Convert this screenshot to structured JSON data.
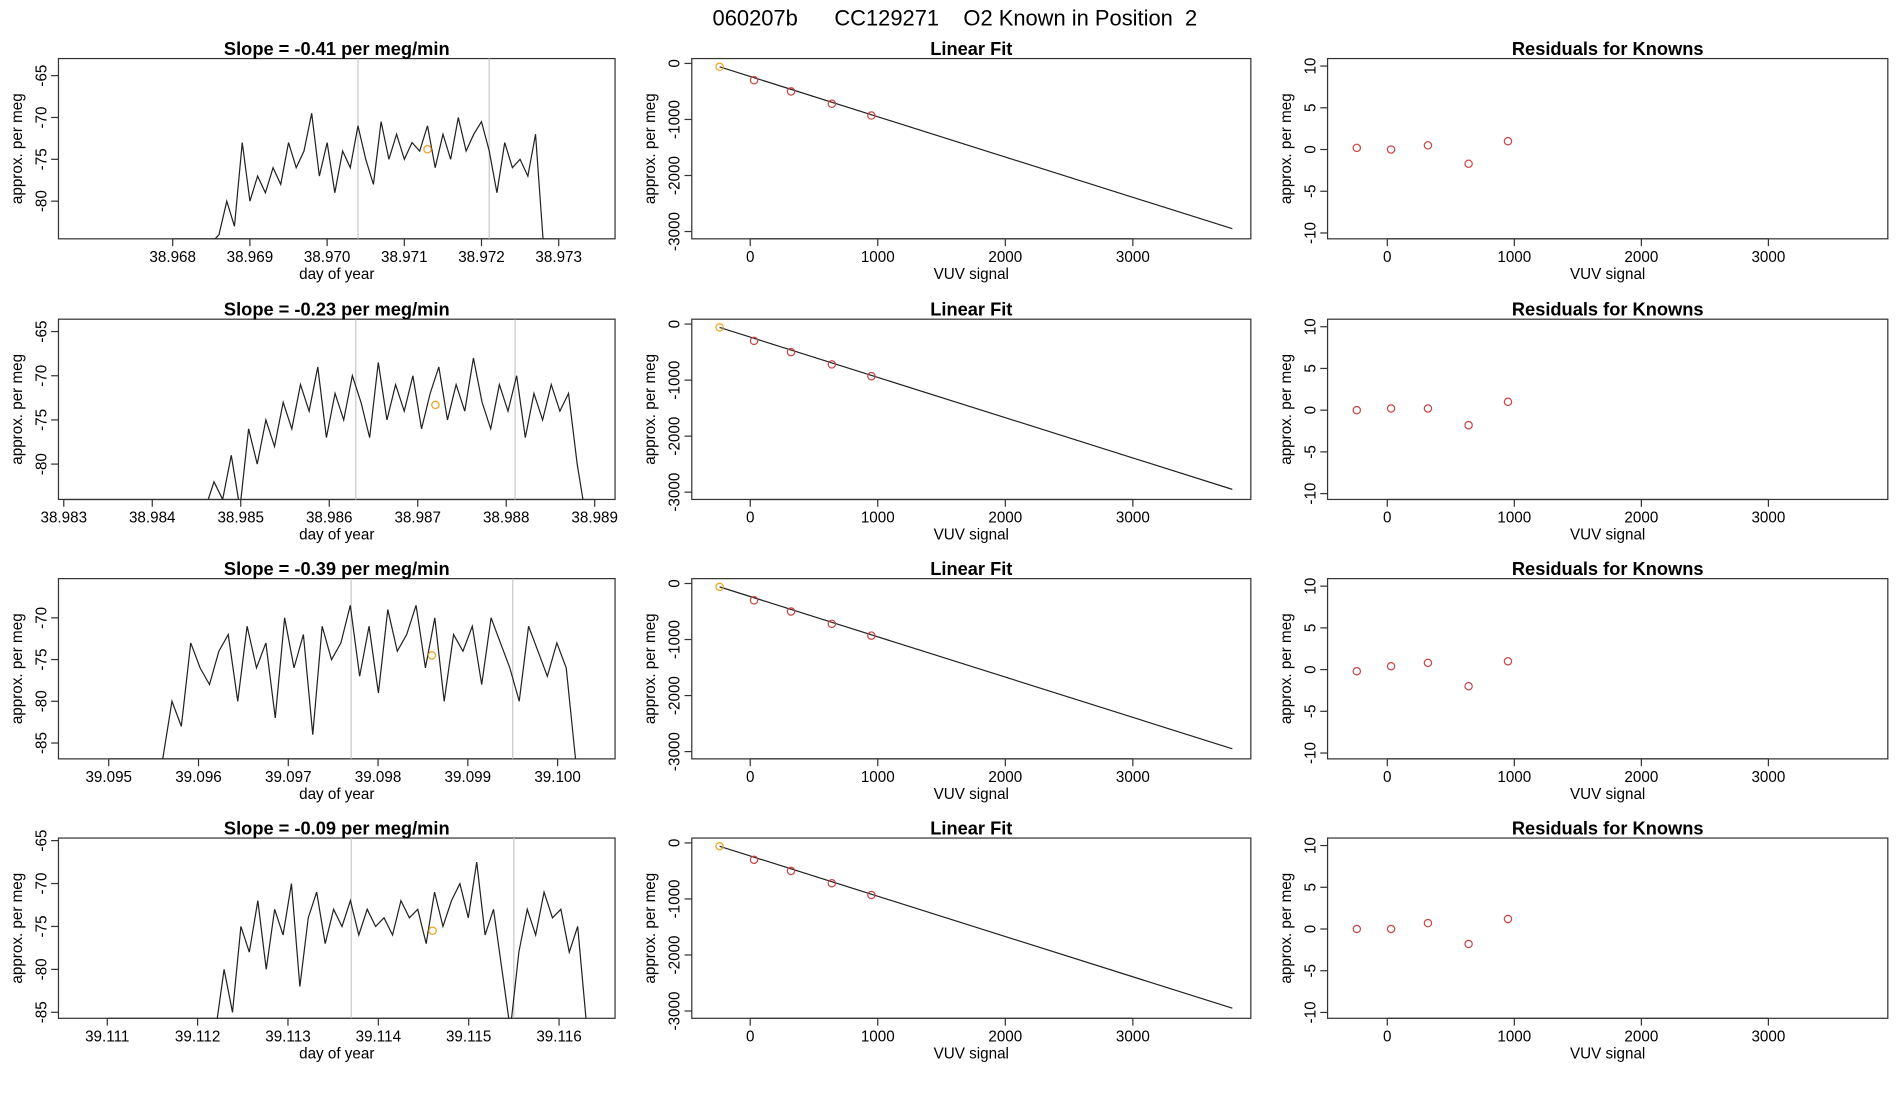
{
  "title": "060207b      CC129271    O2 Known in Position  2",
  "colors": {
    "line": "#222222",
    "marker_known": "#cc4444",
    "marker_first": "#f0a020",
    "guide": "#c8c8c8"
  },
  "chart_data": [
    {
      "type": "line",
      "row": 0,
      "title": "Slope =  -0.41  per meg/min",
      "xlabel": "day of year",
      "ylabel": "approx. per meg",
      "xlim": [
        38.96652,
        38.97373
      ],
      "ylim": [
        -84.5,
        -62.96
      ],
      "xticks": [
        "38.968",
        "38.969",
        "38.970",
        "38.971",
        "38.972",
        "38.973"
      ],
      "yticks": [
        "-65",
        "-70",
        "-75",
        "-80"
      ],
      "x_start": 38.9683,
      "x_end": 38.9728,
      "y": [
        -85,
        -85,
        -85,
        -84,
        -80,
        -83,
        -73,
        -80,
        -77,
        -79,
        -76,
        -78,
        -73,
        -76,
        -74,
        -69.5,
        -77,
        -73,
        -79,
        -74,
        -76,
        -71,
        -75,
        -78,
        -70.5,
        -75,
        -72,
        -75,
        -73,
        -74,
        -71,
        -76,
        -72,
        -75,
        -70,
        -74,
        -72,
        -70.5,
        -74,
        -79,
        -73,
        -76,
        -75,
        -77,
        -72,
        -85
      ],
      "guides": [
        38.9704,
        38.9721
      ],
      "marker": {
        "x": 38.9713,
        "y": -73.8
      }
    },
    {
      "type": "line",
      "row": 1,
      "title": "Slope =  -0.23  per meg/min",
      "xlabel": "day of year",
      "ylabel": "approx. per meg",
      "xlim": [
        38.98294,
        38.98923
      ],
      "ylim": [
        -84.0,
        -63.6
      ],
      "xticks": [
        "38.983",
        "38.984",
        "38.985",
        "38.986",
        "38.987",
        "38.988",
        "38.989"
      ],
      "yticks": [
        "-65",
        "-70",
        "-75",
        "-80"
      ],
      "x_start": 38.9846,
      "x_end": 38.9889,
      "y": [
        -85,
        -82,
        -84,
        -79,
        -85,
        -76,
        -80,
        -75,
        -78,
        -73,
        -76,
        -71,
        -74,
        -69,
        -77,
        -72,
        -75,
        -70,
        -73,
        -77,
        -68.5,
        -75,
        -71,
        -74,
        -70,
        -76,
        -72,
        -69,
        -75,
        -71,
        -74,
        -68,
        -73,
        -76,
        -71,
        -74,
        -70,
        -77,
        -72,
        -75,
        -71,
        -74,
        -72,
        -80,
        -86
      ],
      "guides": [
        38.9863,
        38.9881
      ],
      "marker": {
        "x": 38.9872,
        "y": -73.3
      }
    },
    {
      "type": "line",
      "row": 2,
      "title": "Slope =  -0.39  per meg/min",
      "xlabel": "day of year",
      "ylabel": "approx. per meg",
      "xlim": [
        39.09444,
        39.10064
      ],
      "ylim": [
        -86.9,
        -65.3
      ],
      "xticks": [
        "39.095",
        "39.096",
        "39.097",
        "39.098",
        "39.099",
        "39.100"
      ],
      "yticks": [
        "-70",
        "-75",
        "-80",
        "-85"
      ],
      "x_start": 39.0956,
      "x_end": 39.1002,
      "y": [
        -87,
        -80,
        -83,
        -73,
        -76,
        -78,
        -74,
        -72,
        -80,
        -71,
        -76,
        -73,
        -82,
        -70,
        -76,
        -72,
        -84,
        -71,
        -75,
        -73,
        -68.5,
        -77,
        -71,
        -79,
        -69,
        -74,
        -72,
        -68.5,
        -76,
        -70,
        -80,
        -72,
        -74,
        -71,
        -78,
        -70,
        -73,
        -76,
        -80,
        -71,
        -74,
        -77,
        -73,
        -76,
        -87
      ],
      "guides": [
        39.0977,
        39.0995
      ],
      "marker": {
        "x": 39.0986,
        "y": -74.5
      }
    },
    {
      "type": "line",
      "row": 3,
      "title": "Slope =  -0.09  per meg/min",
      "xlabel": "day of year",
      "ylabel": "approx. per meg",
      "xlim": [
        39.11046,
        39.11662
      ],
      "ylim": [
        -85.7,
        -64.7
      ],
      "xticks": [
        "39.111",
        "39.112",
        "39.113",
        "39.114",
        "39.115",
        "39.116"
      ],
      "yticks": [
        "-65",
        "-70",
        "-75",
        "-80",
        "-85"
      ],
      "x_start": 39.1122,
      "x_end": 39.1163,
      "y": [
        -87,
        -80,
        -85,
        -75,
        -78,
        -72,
        -80,
        -73,
        -76,
        -70,
        -82,
        -74,
        -71,
        -77,
        -73,
        -75,
        -72,
        -76,
        -73,
        -75,
        -74,
        -76,
        -72,
        -74,
        -73,
        -77,
        -71,
        -75,
        -72,
        -70,
        -74,
        -67.5,
        -76,
        -73,
        -80,
        -87,
        -78,
        -73,
        -76,
        -71,
        -74,
        -73,
        -78,
        -75,
        -86
      ],
      "guides": [
        39.1137,
        39.1155
      ],
      "marker": {
        "x": 39.1146,
        "y": -75.5
      }
    }
  ],
  "fit_panels": {
    "title": "Linear Fit",
    "xlabel": "VUV signal",
    "ylabel": "approx. per meg",
    "xlim": [
      -458,
      3925
    ],
    "ylim": [
      -3130,
      87
    ],
    "xticks": [
      "0",
      "1000",
      "2000",
      "3000"
    ],
    "yticks": [
      "0",
      "-1000",
      "-2000",
      "-3000"
    ],
    "points_x": [
      -240,
      30,
      320,
      640,
      950
    ],
    "points_y": [
      -60,
      -300,
      -500,
      -720,
      -930
    ],
    "line": [
      [
        -240,
        -60
      ],
      [
        3780,
        -2950
      ]
    ]
  },
  "residual_panels": {
    "title": "Residuals for Knowns",
    "xlabel": "VUV signal",
    "ylabel": "approx. per meg",
    "xlim": [
      -470,
      3940
    ],
    "ylim": [
      -10.7,
      10.9
    ],
    "xticks": [
      "0",
      "1000",
      "2000",
      "3000"
    ],
    "yticks": [
      "10",
      "5",
      "0",
      "-5",
      "-10"
    ],
    "points_x": [
      -240,
      30,
      320,
      640,
      950
    ],
    "rows": [
      [
        0.2,
        0,
        0.5,
        -1.7,
        1.0
      ],
      [
        0,
        0.2,
        0.2,
        -1.8,
        1.0
      ],
      [
        -0.2,
        0.4,
        0.8,
        -2.0,
        1.0
      ],
      [
        0,
        0,
        0.7,
        -1.8,
        1.2
      ]
    ]
  }
}
